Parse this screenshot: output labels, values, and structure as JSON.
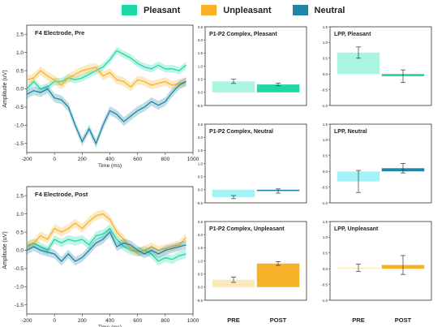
{
  "colors": {
    "pleasant": "#1fd8a6",
    "unpleasant": "#f7b22a",
    "neutral": "#1e86a6"
  },
  "legend": [
    {
      "label": "Pleasant",
      "color": "#1fd8a6"
    },
    {
      "label": "Unpleasant",
      "color": "#f7b22a"
    },
    {
      "label": "Neutral",
      "color": "#1e86a6"
    }
  ],
  "x_axis_labels": [
    "PRE",
    "POST"
  ],
  "chart_data": [
    {
      "type": "line",
      "title": "F4 Electrode, Pre",
      "xlabel": "Time (ms)",
      "ylabel": "Amplitude (uV)",
      "xlim": [
        -200,
        1000
      ],
      "ylim": [
        -1.75,
        1.75
      ],
      "xticks": [
        -200,
        0,
        200,
        400,
        600,
        800,
        1000
      ],
      "yticks": [
        -1.5,
        -1.0,
        -0.5,
        0.0,
        0.5,
        1.0,
        1.5
      ],
      "x": [
        -200,
        -150,
        -100,
        -50,
        0,
        50,
        100,
        150,
        200,
        250,
        300,
        350,
        400,
        450,
        500,
        550,
        600,
        650,
        700,
        750,
        800,
        850,
        900,
        950
      ],
      "series": [
        {
          "name": "Pleasant",
          "values": [
            0.0,
            0.2,
            0.0,
            0.05,
            0.2,
            0.2,
            0.3,
            0.25,
            0.3,
            0.4,
            0.5,
            0.6,
            0.8,
            1.05,
            0.95,
            0.85,
            0.7,
            0.6,
            0.55,
            0.65,
            0.55,
            0.55,
            0.5,
            0.65
          ],
          "band": 0.1
        },
        {
          "name": "Unpleasant",
          "values": [
            0.25,
            0.3,
            0.5,
            0.35,
            0.25,
            0.1,
            0.3,
            0.4,
            0.5,
            0.55,
            0.6,
            0.35,
            0.45,
            0.25,
            0.2,
            0.05,
            0.25,
            0.2,
            0.1,
            0.15,
            0.2,
            0.1,
            0.15,
            0.2
          ],
          "band": 0.12
        },
        {
          "name": "Neutral",
          "values": [
            -0.15,
            -0.05,
            -0.1,
            0.0,
            -0.25,
            -0.3,
            -0.5,
            -1.0,
            -1.45,
            -1.1,
            -1.5,
            -1.0,
            -0.6,
            -0.7,
            -0.9,
            -0.75,
            -0.6,
            -0.5,
            -0.35,
            -0.45,
            -0.35,
            -0.1,
            0.1,
            0.2
          ],
          "band": 0.12
        }
      ]
    },
    {
      "type": "line",
      "title": "F4 Electrode, Post",
      "xlabel": "Time (ms)",
      "ylabel": "Amplitude (uV)",
      "xlim": [
        -200,
        1000
      ],
      "ylim": [
        -1.75,
        1.75
      ],
      "xticks": [
        -200,
        0,
        200,
        400,
        600,
        800,
        1000
      ],
      "yticks": [
        -1.5,
        -1.0,
        -0.5,
        0.0,
        0.5,
        1.0,
        1.5
      ],
      "x": [
        -200,
        -150,
        -100,
        -50,
        0,
        50,
        100,
        150,
        200,
        250,
        300,
        350,
        400,
        450,
        500,
        550,
        600,
        650,
        700,
        750,
        800,
        850,
        900,
        950
      ],
      "series": [
        {
          "name": "Pleasant",
          "values": [
            0.1,
            0.2,
            0.1,
            0.0,
            0.3,
            0.2,
            0.3,
            0.25,
            0.3,
            0.15,
            0.4,
            0.45,
            0.6,
            0.3,
            0.1,
            0.0,
            -0.05,
            0.0,
            -0.1,
            -0.3,
            -0.2,
            -0.25,
            -0.15,
            -0.1
          ],
          "band": 0.12
        },
        {
          "name": "Unpleasant",
          "values": [
            0.15,
            0.2,
            0.4,
            0.3,
            0.6,
            0.5,
            0.6,
            0.75,
            0.6,
            0.8,
            0.95,
            1.0,
            0.85,
            0.5,
            0.3,
            0.05,
            -0.05,
            0.0,
            0.1,
            0.0,
            0.05,
            0.1,
            0.15,
            0.35
          ],
          "band": 0.12
        },
        {
          "name": "Neutral",
          "values": [
            0.0,
            0.1,
            0.0,
            -0.05,
            -0.1,
            -0.3,
            -0.1,
            -0.3,
            -0.2,
            0.0,
            0.2,
            0.3,
            0.5,
            0.1,
            0.2,
            0.15,
            0.0,
            -0.1,
            0.0,
            -0.1,
            0.0,
            0.05,
            0.1,
            0.15
          ],
          "band": 0.12
        }
      ]
    },
    {
      "type": "bar",
      "title": "P1-P2 Complex, Pleasant",
      "categories": [
        "PRE",
        "POST"
      ],
      "values": [
        0.42,
        0.3
      ],
      "errors": [
        0.08,
        0.05
      ],
      "colors": [
        "#a9f5df",
        "#1fd8a6"
      ],
      "ylim": [
        -0.5,
        2.5
      ],
      "yticks": [
        "-0.5",
        "0.0",
        "0.5",
        "1.0",
        "1.5",
        "2.0",
        "2.5"
      ]
    },
    {
      "type": "bar",
      "title": "LPP, Pleasant",
      "categories": [
        "PRE",
        "POST"
      ],
      "values": [
        0.68,
        -0.07
      ],
      "errors": [
        0.18,
        0.2
      ],
      "colors": [
        "#a9f5df",
        "#1fd8a6"
      ],
      "ylim": [
        -1.0,
        1.5
      ],
      "yticks": [
        "-1.0",
        "-0.5",
        "0.0",
        "0.5",
        "1.0",
        "1.5"
      ]
    },
    {
      "type": "bar",
      "title": "P1-P2 Complex, Neutral",
      "categories": [
        "PRE",
        "POST"
      ],
      "values": [
        -0.28,
        -0.05
      ],
      "errors": [
        0.06,
        0.08
      ],
      "colors": [
        "#a3f3f6",
        "#1e86a6"
      ],
      "ylim": [
        -0.5,
        2.5
      ],
      "yticks": [
        "-0.5",
        "0.0",
        "0.5",
        "1.0",
        "1.5",
        "2.0",
        "2.5"
      ]
    },
    {
      "type": "bar",
      "title": "LPP, Neutral",
      "categories": [
        "PRE",
        "POST"
      ],
      "values": [
        -0.32,
        0.1
      ],
      "errors": [
        0.35,
        0.15
      ],
      "colors": [
        "#a3f3f6",
        "#1e86a6"
      ],
      "ylim": [
        -1.0,
        1.5
      ],
      "yticks": [
        "-1.0",
        "-0.5",
        "0.0",
        "0.5",
        "1.0",
        "1.5"
      ]
    },
    {
      "type": "bar",
      "title": "P1-P2 Complex, Unpleasant",
      "categories": [
        "PRE",
        "POST"
      ],
      "values": [
        0.28,
        0.9
      ],
      "errors": [
        0.1,
        0.07
      ],
      "colors": [
        "#fde9b8",
        "#f7b22a"
      ],
      "ylim": [
        -0.5,
        2.5
      ],
      "yticks": [
        "-0.5",
        "0.0",
        "0.5",
        "1.0",
        "1.5",
        "2.0",
        "2.5"
      ]
    },
    {
      "type": "bar",
      "title": "LPP, Unpleasant",
      "categories": [
        "PRE",
        "POST"
      ],
      "values": [
        0.03,
        0.12
      ],
      "errors": [
        0.12,
        0.3
      ],
      "colors": [
        "#fde9b8",
        "#f7b22a"
      ],
      "ylim": [
        -1.0,
        1.5
      ],
      "yticks": [
        "-1.0",
        "-0.5",
        "0.0",
        "0.5",
        "1.0",
        "1.5"
      ]
    }
  ]
}
